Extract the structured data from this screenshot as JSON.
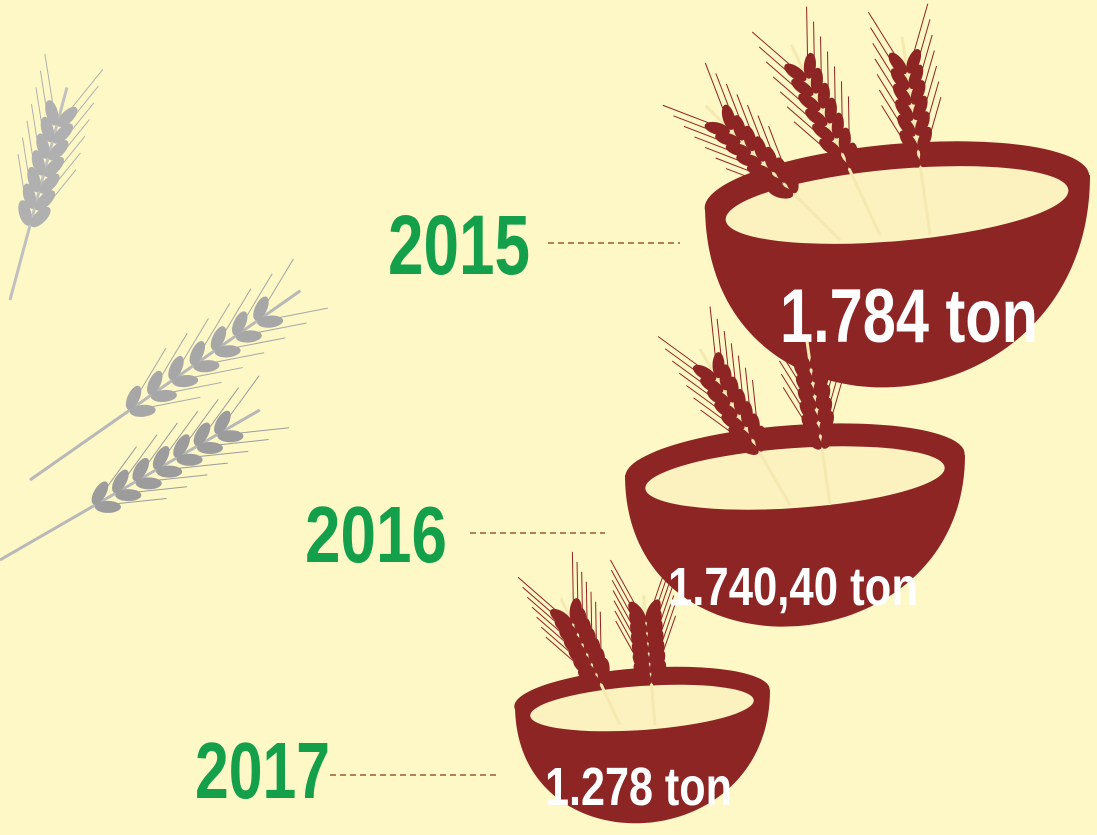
{
  "items": [
    {
      "year": "2015",
      "amount": "1.784 ton"
    },
    {
      "year": "2016",
      "amount": "1.740,40 ton"
    },
    {
      "year": "2017",
      "amount": "1.278 ton"
    }
  ]
}
